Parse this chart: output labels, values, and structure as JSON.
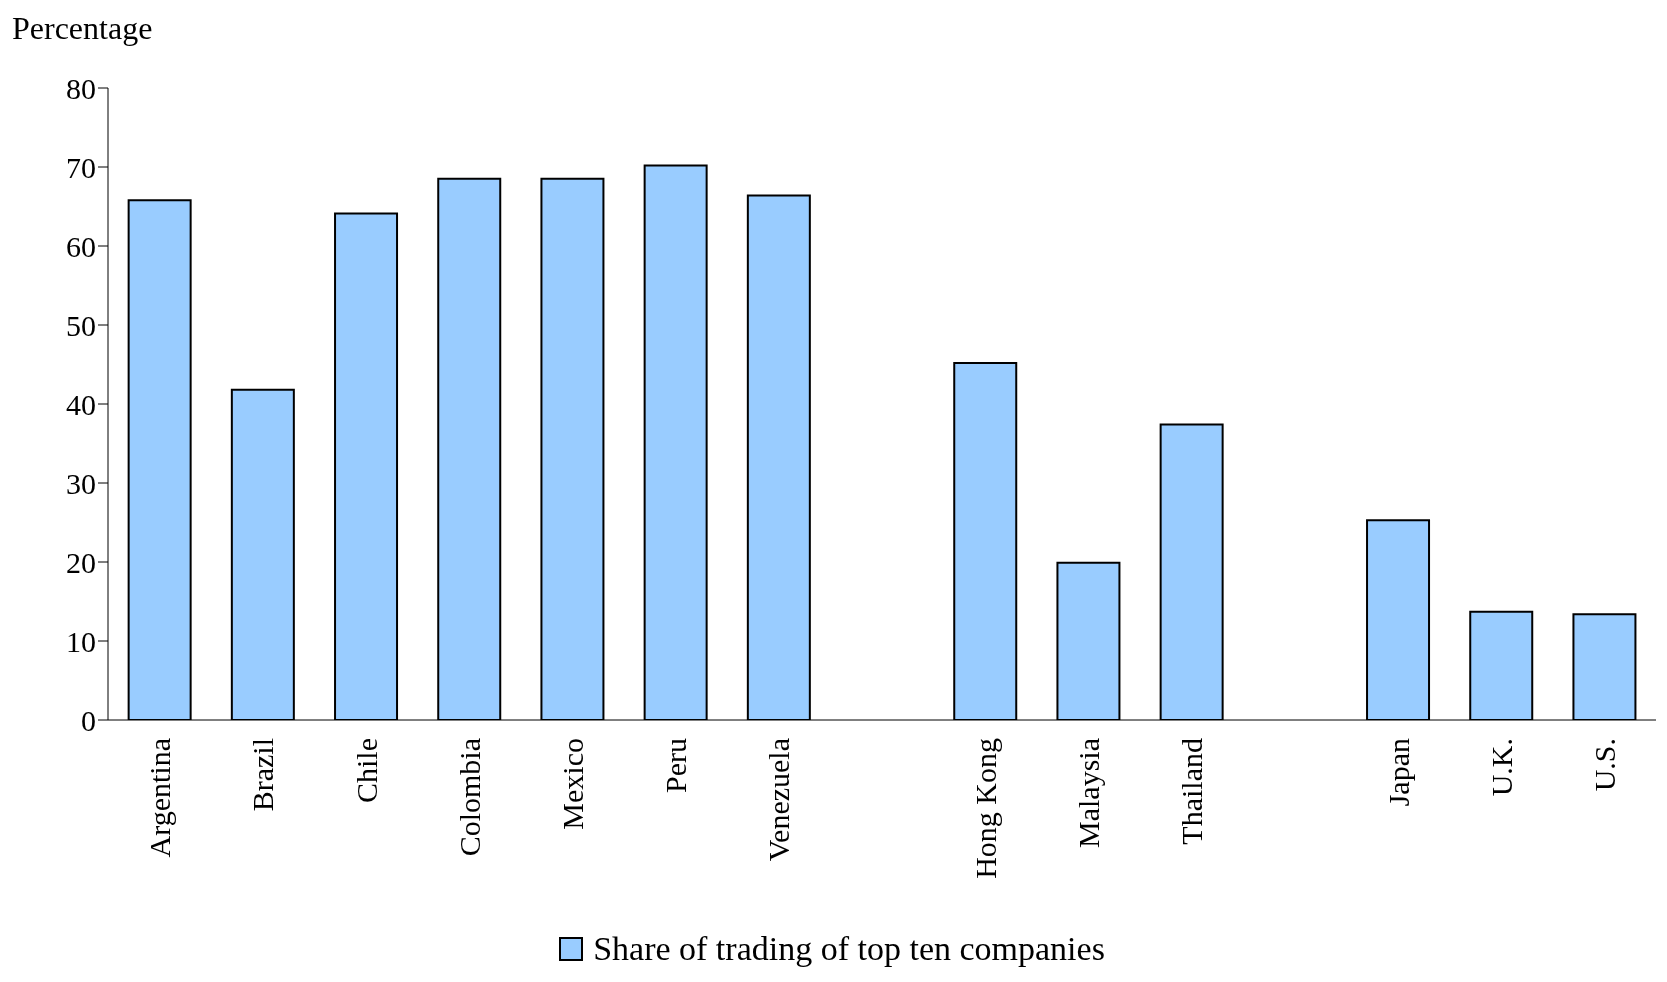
{
  "chart_data": {
    "type": "bar",
    "ylabel": "Percentage",
    "categories": [
      "Argentina",
      "Brazil",
      "Chile",
      "Colombia",
      "Mexico",
      "Peru",
      "Venezuela",
      null,
      "Hong Kong",
      "Malaysia",
      "Thailand",
      null,
      "Japan",
      "U.K.",
      "U.S."
    ],
    "series": [
      {
        "name": "Share of trading of top ten companies",
        "color": "#99ccff",
        "values": [
          65.8,
          41.8,
          64.1,
          68.5,
          68.5,
          70.2,
          66.4,
          null,
          45.2,
          19.9,
          37.4,
          null,
          25.3,
          13.7,
          13.4
        ]
      }
    ],
    "ylim": [
      0,
      80
    ],
    "yticks": [
      0,
      10,
      20,
      30,
      40,
      50,
      60,
      70,
      80
    ],
    "grid": false,
    "legend": "bottom"
  }
}
